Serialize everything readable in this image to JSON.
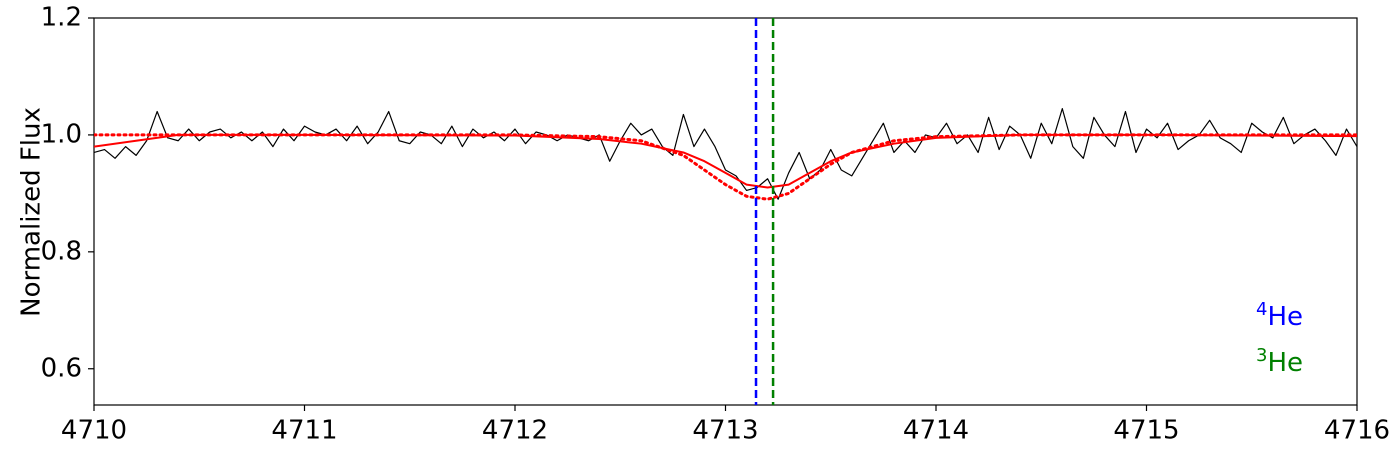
{
  "chart_data": {
    "type": "line",
    "ylabel": "Normalized Flux",
    "xlim": [
      4710,
      4716
    ],
    "ylim": [
      0.538,
      1.2
    ],
    "xticks": [
      4710,
      4711,
      4712,
      4713,
      4714,
      4715,
      4716
    ],
    "yticks": [
      0.6,
      0.8,
      {
        "value": 1.0,
        "label": "1.0"
      },
      1.2
    ],
    "series": [
      {
        "color": "#000000",
        "style": "solid",
        "width": 1.2,
        "x": [
          4710,
          4710.05,
          4710.1,
          4710.15,
          4710.2,
          4710.25,
          4710.3,
          4710.35,
          4710.4,
          4710.45,
          4710.5,
          4710.55,
          4710.6,
          4710.65,
          4710.7,
          4710.75,
          4710.8,
          4710.85,
          4710.9,
          4710.95,
          4711,
          4711.05,
          4711.1,
          4711.15,
          4711.2,
          4711.25,
          4711.3,
          4711.35,
          4711.4,
          4711.45,
          4711.5,
          4711.55,
          4711.6,
          4711.65,
          4711.7,
          4711.75,
          4711.8,
          4711.85,
          4711.9,
          4711.95,
          4712,
          4712.05,
          4712.1,
          4712.15,
          4712.2,
          4712.25,
          4712.3,
          4712.35,
          4712.4,
          4712.45,
          4712.5,
          4712.55,
          4712.6,
          4712.65,
          4712.7,
          4712.75,
          4712.8,
          4712.85,
          4712.9,
          4712.95,
          4713,
          4713.05,
          4713.1,
          4713.15,
          4713.2,
          4713.25,
          4713.3,
          4713.35,
          4713.4,
          4713.45,
          4713.5,
          4713.55,
          4713.6,
          4713.65,
          4713.7,
          4713.75,
          4713.8,
          4713.85,
          4713.9,
          4713.95,
          4714,
          4714.05,
          4714.1,
          4714.15,
          4714.2,
          4714.25,
          4714.3,
          4714.35,
          4714.4,
          4714.45,
          4714.5,
          4714.55,
          4714.6,
          4714.65,
          4714.7,
          4714.75,
          4714.8,
          4714.85,
          4714.9,
          4714.95,
          4715,
          4715.05,
          4715.1,
          4715.15,
          4715.2,
          4715.25,
          4715.3,
          4715.35,
          4715.4,
          4715.45,
          4715.5,
          4715.55,
          4715.6,
          4715.65,
          4715.7,
          4715.75,
          4715.8,
          4715.85,
          4715.9,
          4715.95,
          4716
        ],
        "values": [
          0.97,
          0.975,
          0.96,
          0.98,
          0.965,
          0.99,
          1.04,
          0.995,
          0.99,
          1.01,
          0.99,
          1.005,
          1.01,
          0.995,
          1.005,
          0.99,
          1.005,
          0.98,
          1.01,
          0.99,
          1.015,
          1.005,
          1.0,
          1.01,
          0.99,
          1.015,
          0.985,
          1.005,
          1.04,
          0.99,
          0.985,
          1.005,
          1.0,
          0.985,
          1.015,
          0.98,
          1.01,
          0.995,
          1.005,
          0.99,
          1.01,
          0.985,
          1.005,
          1.0,
          0.99,
          1.0,
          0.995,
          0.99,
          1.0,
          0.955,
          0.99,
          1.02,
          1.0,
          1.01,
          0.98,
          0.965,
          1.035,
          0.98,
          1.01,
          0.98,
          0.94,
          0.93,
          0.905,
          0.91,
          0.925,
          0.89,
          0.935,
          0.97,
          0.925,
          0.94,
          0.975,
          0.94,
          0.93,
          0.96,
          0.99,
          1.02,
          0.97,
          0.99,
          0.97,
          1.0,
          0.995,
          1.02,
          0.985,
          1.0,
          0.97,
          1.03,
          0.975,
          1.015,
          1.0,
          0.96,
          1.02,
          0.985,
          1.045,
          0.98,
          0.96,
          1.03,
          1.0,
          0.98,
          1.04,
          0.97,
          1.01,
          0.995,
          1.02,
          0.975,
          0.99,
          1.0,
          1.025,
          0.995,
          0.985,
          0.97,
          1.02,
          1.005,
          0.995,
          1.03,
          0.985,
          1.0,
          1.01,
          0.99,
          0.965,
          1.01,
          0.98
        ]
      },
      {
        "color": "#ff0000",
        "style": "solid",
        "width": 2,
        "x": [
          4710,
          4710.2,
          4710.4,
          4711,
          4712,
          4712.4,
          4712.6,
          4712.8,
          4712.9,
          4713,
          4713.1,
          4713.2,
          4713.3,
          4713.4,
          4713.5,
          4713.6,
          4713.8,
          4714,
          4714.4,
          4715,
          4716
        ],
        "values": [
          0.98,
          0.99,
          1.0,
          1.0,
          0.999,
          0.993,
          0.985,
          0.97,
          0.955,
          0.935,
          0.915,
          0.91,
          0.915,
          0.935,
          0.955,
          0.97,
          0.985,
          0.995,
          1.0,
          1.0,
          0.998
        ]
      },
      {
        "color": "#ff0000",
        "style": "dotted",
        "width": 3,
        "x": [
          4710,
          4710.2,
          4710.4,
          4711,
          4712,
          4712.4,
          4712.6,
          4712.8,
          4712.9,
          4713,
          4713.1,
          4713.2,
          4713.3,
          4713.4,
          4713.5,
          4713.6,
          4713.8,
          4714,
          4714.4,
          4715,
          4716
        ],
        "values": [
          1.0,
          1.0,
          1.0,
          1.0,
          1.0,
          0.997,
          0.99,
          0.965,
          0.94,
          0.915,
          0.895,
          0.89,
          0.9,
          0.925,
          0.95,
          0.97,
          0.99,
          0.997,
          1.0,
          1.0,
          1.0
        ]
      }
    ],
    "vlines": [
      {
        "x": 4713.145,
        "color": "#0000ff"
      },
      {
        "x": 4713.226,
        "color": "#008000"
      }
    ],
    "annotations": [
      {
        "mass": "4",
        "symbol": "He",
        "color": "#0000ff"
      },
      {
        "mass": "3",
        "symbol": "He",
        "color": "#008000"
      }
    ]
  }
}
